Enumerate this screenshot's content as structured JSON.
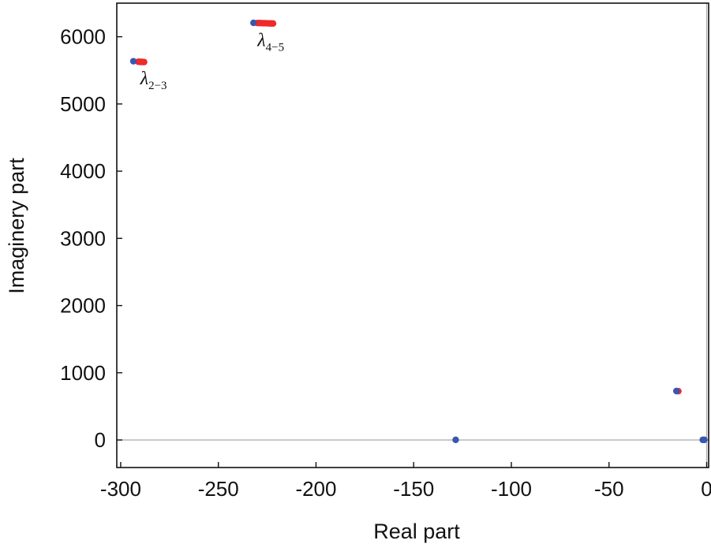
{
  "chart_data": {
    "type": "scatter",
    "title": "",
    "xlabel": "Real part",
    "ylabel": "Imaginery part",
    "xlim": [
      -302,
      1
    ],
    "ylim": [
      -410,
      6500
    ],
    "xticks": [
      -300,
      -250,
      -200,
      -150,
      -100,
      -50,
      0
    ],
    "xtick_labels": [
      "-300",
      "-250",
      "-200",
      "-150",
      "-100",
      "-50",
      "0"
    ],
    "yticks": [
      0,
      1000,
      2000,
      3000,
      4000,
      5000,
      6000
    ],
    "ytick_labels": [
      "0",
      "1000",
      "2000",
      "3000",
      "4000",
      "5000",
      "6000"
    ],
    "grid": false,
    "reference_lines": {
      "x_zero": true,
      "y_zero": true
    },
    "colors": {
      "blue": "#3a57b0",
      "red": "#ee2a2a",
      "refline": "#b0b0b0",
      "frame": "#111111"
    },
    "series": [
      {
        "color": "#ee2a2a",
        "points": [
          [
            -291.0,
            5628
          ],
          [
            -290.5,
            5627
          ],
          [
            -290.0,
            5626
          ],
          [
            -289.5,
            5626
          ],
          [
            -289.0,
            5625
          ],
          [
            -288.5,
            5625
          ],
          [
            -288.0,
            5624
          ],
          [
            -230.0,
            6205
          ],
          [
            -229.0,
            6204
          ],
          [
            -228.0,
            6203
          ],
          [
            -227.0,
            6202
          ],
          [
            -226.0,
            6201
          ],
          [
            -225.0,
            6200
          ],
          [
            -224.0,
            6199
          ],
          [
            -223.0,
            6198
          ],
          [
            -222.0,
            6197
          ],
          [
            -14.5,
            726
          ]
        ]
      },
      {
        "color": "#3a57b0",
        "points": [
          [
            -293.5,
            5636
          ],
          [
            -232.0,
            6207
          ],
          [
            -128.5,
            2
          ],
          [
            -15.5,
            728
          ],
          [
            -2.0,
            2
          ],
          [
            -1.2,
            2
          ]
        ]
      }
    ],
    "annotations": [
      {
        "base": "λ",
        "sub": "2−3",
        "x": -290,
        "y": 5290
      },
      {
        "base": "λ",
        "sub": "4−5",
        "x": -230,
        "y": 5860
      }
    ]
  }
}
